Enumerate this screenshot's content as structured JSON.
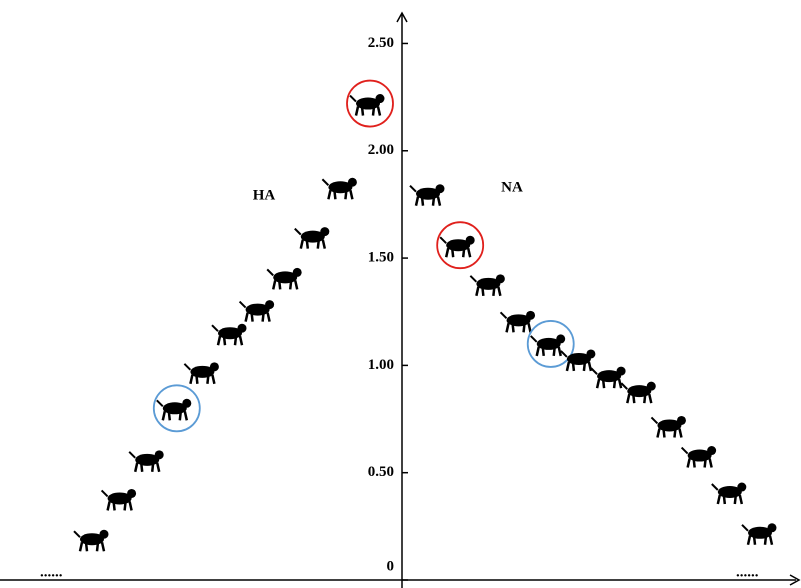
{
  "chart_data": {
    "type": "scatter",
    "ylim": [
      0,
      2.6
    ],
    "yticks": [
      0,
      {
        "value": 0.5,
        "label": "0.50"
      },
      {
        "value": 1,
        "label": "1.00"
      },
      {
        "value": 1.5,
        "label": "1.50"
      },
      {
        "value": 2,
        "label": "2.00"
      },
      {
        "value": 2.5,
        "label": "2.50"
      }
    ],
    "series": [
      {
        "name": "HA",
        "color": "#000000",
        "values": [
          0.19,
          0.38,
          0.56,
          0.8,
          0.97,
          1.15,
          1.26,
          1.41,
          1.6,
          1.83,
          2.22
        ],
        "circle_colors": [
          null,
          null,
          null,
          "#5b9bd5",
          null,
          null,
          null,
          null,
          null,
          null,
          "#e0201c"
        ]
      },
      {
        "name": "NA",
        "color": "#000000",
        "values": [
          1.8,
          1.56,
          1.38,
          1.21,
          1.1,
          1.03,
          0.95,
          0.88,
          0.72,
          0.58,
          0.41,
          0.22
        ],
        "circle_colors": [
          null,
          "#e0201c",
          null,
          null,
          "#5b9bd5",
          null,
          null,
          null,
          null,
          null,
          null,
          null
        ]
      }
    ],
    "ellipsis_left": "......",
    "ellipsis_right": "......"
  }
}
